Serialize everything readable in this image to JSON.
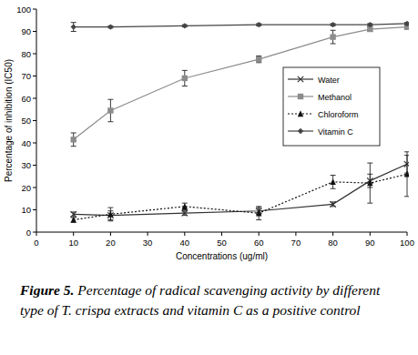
{
  "chart_data": {
    "type": "line",
    "x_label": "Concentrations (ug/ml)",
    "y_label": "Percentage of inhibition (IC50)",
    "caption_label": "Figure 5.",
    "caption": "Percentage of radical scavenging activity by different type of T. crispa  extracts and vitamin C as a positive control",
    "x": [
      10,
      20,
      40,
      60,
      80,
      90,
      100
    ],
    "xlim": [
      0,
      100
    ],
    "xticks": [
      0,
      10,
      20,
      30,
      40,
      50,
      60,
      70,
      80,
      90,
      100
    ],
    "ylim": [
      0,
      100
    ],
    "yticks": [
      0,
      10,
      20,
      30,
      40,
      50,
      60,
      70,
      80,
      90,
      100
    ],
    "grid": false,
    "legend": "upper right",
    "series": [
      {
        "name": "Water",
        "color": "#333333",
        "marker": "x",
        "line_style": "solid",
        "values": [
          8,
          7.5,
          8.5,
          9.5,
          12.5,
          23,
          30.5
        ],
        "errors": [
          1,
          2,
          1,
          1.5,
          1,
          3,
          4
        ]
      },
      {
        "name": "Methanol",
        "color": "#8c8c8c",
        "marker": "square",
        "line_style": "solid",
        "values": [
          41.5,
          54.5,
          69,
          77.5,
          87.5,
          91,
          92
        ],
        "errors": [
          3,
          5,
          3.5,
          1.5,
          3,
          1,
          1
        ]
      },
      {
        "name": "Chloroform",
        "color": "#111111",
        "marker": "triangle",
        "line_style": "dotted",
        "values": [
          5.5,
          8,
          11.5,
          8.5,
          22.5,
          22,
          26
        ],
        "errors": [
          1,
          3,
          1.5,
          3,
          3,
          9,
          10
        ]
      },
      {
        "name": "Vitamin C",
        "color": "#444444",
        "marker": "diamond",
        "line_style": "solid",
        "values": [
          92,
          92,
          92.5,
          93,
          93,
          93,
          93.5
        ],
        "errors": [
          2,
          0.5,
          0.5,
          0.5,
          0.5,
          0.5,
          0.5
        ]
      }
    ]
  }
}
